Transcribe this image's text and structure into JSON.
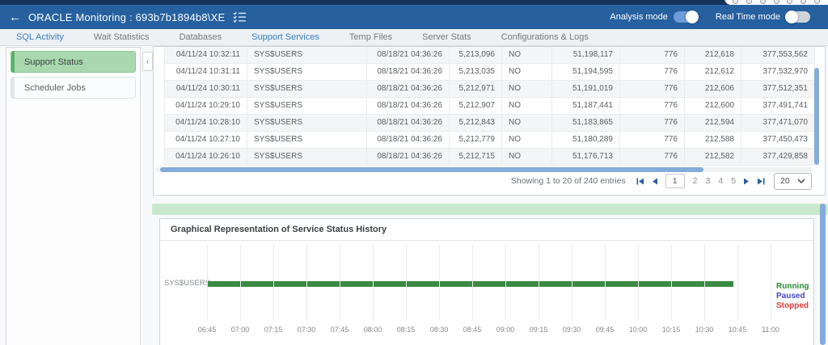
{
  "header": {
    "back_arrow": "←",
    "title": "ORACLE Monitoring : 693b7b1894b8\\XE",
    "analysis_mode_label": "Analysis mode",
    "analysis_mode_on": true,
    "realtime_mode_label": "Real Time mode",
    "realtime_mode_on": false
  },
  "tabs": {
    "items": [
      {
        "label": "SQL Activity",
        "highlighted": true
      },
      {
        "label": "Wait Statistics",
        "highlighted": false
      },
      {
        "label": "Databases",
        "highlighted": false
      },
      {
        "label": "Support Services",
        "highlighted": true
      },
      {
        "label": "Temp Files",
        "highlighted": false
      },
      {
        "label": "Server Stats",
        "highlighted": false
      },
      {
        "label": "Configurations & Logs",
        "highlighted": false
      }
    ]
  },
  "sidebar": {
    "collapse_icon": "‹",
    "items": [
      {
        "label": "Support Status",
        "selected": true
      },
      {
        "label": "Scheduler Jobs",
        "selected": false
      }
    ]
  },
  "table": {
    "rows": [
      [
        "04/11/24 10:32:11",
        "SYS$USERS",
        "08/18/21 04:36:26",
        "5,213,096",
        "NO",
        "51,198,117",
        "776",
        "212,618",
        "377,553,562"
      ],
      [
        "04/11/24 10:31:11",
        "SYS$USERS",
        "08/18/21 04:36:26",
        "5,213,035",
        "NO",
        "51,194,595",
        "776",
        "212,612",
        "377,532,970"
      ],
      [
        "04/11/24 10:30:11",
        "SYS$USERS",
        "08/18/21 04:36:26",
        "5,212,971",
        "NO",
        "51,191,019",
        "776",
        "212,606",
        "377,512,351"
      ],
      [
        "04/11/24 10:29:10",
        "SYS$USERS",
        "08/18/21 04:36:26",
        "5,212,907",
        "NO",
        "51,187,441",
        "776",
        "212,600",
        "377,491,741"
      ],
      [
        "04/11/24 10:28:10",
        "SYS$USERS",
        "08/18/21 04:36:26",
        "5,212,843",
        "NO",
        "51,183,865",
        "776",
        "212,594",
        "377,471,070"
      ],
      [
        "04/11/24 10:27:10",
        "SYS$USERS",
        "08/18/21 04:36:26",
        "5,212,779",
        "NO",
        "51,180,289",
        "776",
        "212,588",
        "377,450,473"
      ],
      [
        "04/11/24 10:26:10",
        "SYS$USERS",
        "08/18/21 04:36:26",
        "5,212,715",
        "NO",
        "51,176,713",
        "776",
        "212,582",
        "377,429,858"
      ]
    ]
  },
  "pagination": {
    "summary": "Showing 1 to 20 of 240 entries",
    "pages": [
      "1",
      "2",
      "3",
      "4",
      "5"
    ],
    "current_page": "1",
    "page_size": "20"
  },
  "chart_data": {
    "type": "bar",
    "title": "Graphical Representation of Service Status History",
    "categories": [
      "SYS$USERS"
    ],
    "x_ticks": [
      "06:45",
      "07:00",
      "07:15",
      "07:30",
      "07:45",
      "08:00",
      "08:15",
      "08:30",
      "08:45",
      "09:00",
      "09:15",
      "09:30",
      "09:45",
      "10:00",
      "10:15",
      "10:30",
      "10:45",
      "11:00"
    ],
    "series": [
      {
        "category": "SYS$USERS",
        "status": "Running",
        "start": "06:45",
        "end": "10:43",
        "color": "#3a8a43"
      }
    ],
    "legend": [
      {
        "label": "Running",
        "color": "#2e8b35"
      },
      {
        "label": "Paused",
        "color": "#4444cc"
      },
      {
        "label": "Stopped",
        "color": "#e23b3b"
      }
    ],
    "xlabel": "",
    "ylabel": "",
    "grid": true,
    "legend_position": "right"
  },
  "colors": {
    "header_bar": "#26609f",
    "top_strip": "#14335c",
    "tab_active": "#377ec0",
    "sidebar_selected": "#a9d8af",
    "green_band": "#c9e9ce",
    "scrollbar": "#84abdb",
    "bar_running": "#3a8a43"
  }
}
